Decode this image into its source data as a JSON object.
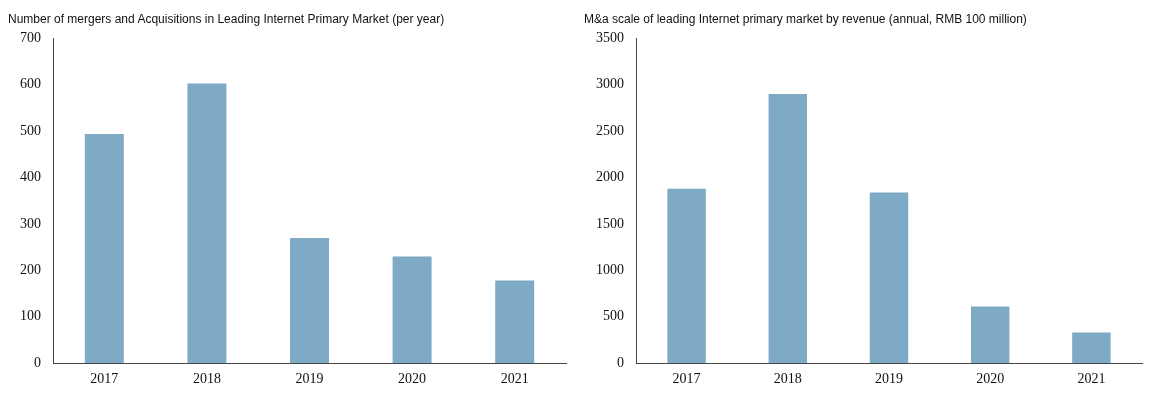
{
  "chart_data": [
    {
      "type": "bar",
      "title": "Number of mergers and Acquisitions in Leading Internet Primary Market (per year)",
      "categories": [
        "2017",
        "2018",
        "2019",
        "2020",
        "2021"
      ],
      "values": [
        494,
        603,
        270,
        230,
        178
      ],
      "color": "#7eaac6",
      "ylim": [
        0,
        700
      ],
      "yticks": [
        0,
        100,
        200,
        300,
        400,
        500,
        600,
        700
      ],
      "grid": false,
      "legend": false
    },
    {
      "type": "bar",
      "title": "M&a scale of leading Internet primary market by revenue (annual, RMB 100 million)",
      "categories": [
        "2017",
        "2018",
        "2019",
        "2020",
        "2021"
      ],
      "values": [
        1880,
        2900,
        1840,
        610,
        330
      ],
      "color": "#7eaac6",
      "ylim": [
        0,
        3500
      ],
      "yticks": [
        0,
        500,
        1000,
        1500,
        2000,
        2500,
        3000,
        3500
      ],
      "grid": false,
      "legend": false
    }
  ]
}
